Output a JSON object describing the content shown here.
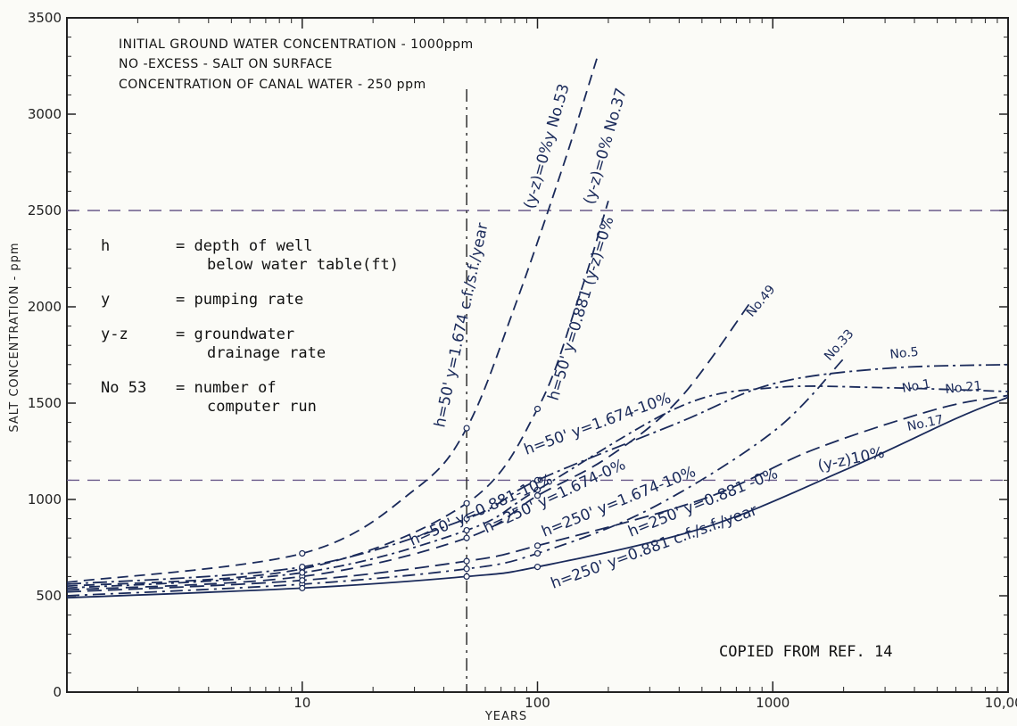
{
  "chart_data": {
    "type": "line",
    "x_scale": "log",
    "xlim": [
      1,
      10000
    ],
    "ylim": [
      0,
      3500
    ],
    "xlabel": "YEARS",
    "ylabel": "SALT CONCENTRATION - ppm",
    "x_ticks": [
      {
        "value": 1,
        "label": ""
      },
      {
        "value": 10,
        "label": "10"
      },
      {
        "value": 100,
        "label": "100"
      },
      {
        "value": 1000,
        "label": "1000"
      },
      {
        "value": 10000,
        "label": "10,000"
      }
    ],
    "y_ticks": [
      0,
      500,
      1000,
      1500,
      2000,
      2500,
      3000,
      3500
    ],
    "notes": [
      "INITIAL GROUND WATER CONCENTRATION - 1000ppm",
      "NO -EXCESS - SALT ON SURFACE",
      "CONCENTRATION OF CANAL WATER - 250 ppm"
    ],
    "legend": [
      {
        "symbol": "h",
        "desc": [
          "= depth of well",
          "below water table(ft)"
        ]
      },
      {
        "symbol": "y",
        "desc": [
          "= pumping rate"
        ]
      },
      {
        "symbol": "y-z",
        "desc": [
          "= groundwater",
          "drainage rate"
        ]
      },
      {
        "symbol": "No 53",
        "desc": [
          "= number of",
          "computer run"
        ]
      }
    ],
    "reference_lines": {
      "horizontal": [
        2500,
        1100
      ],
      "vertical": [
        50
      ]
    },
    "series": [
      {
        "name": "No. 53",
        "label": "h=50' y=1.674 c.f./s.f./year (y-z)=0%",
        "x": [
          1,
          10,
          30,
          50,
          80,
          130,
          180
        ],
        "y": [
          570,
          720,
          1050,
          1370,
          2000,
          2750,
          3300
        ]
      },
      {
        "name": "No. 37",
        "label": "h=50' y=0.881 (y-z)=0%",
        "x": [
          1,
          10,
          50,
          100,
          150,
          200
        ],
        "y": [
          550,
          640,
          980,
          1470,
          2050,
          2550
        ]
      },
      {
        "name": "No. 49",
        "label": "h=250' y=1.674-0%",
        "x": [
          1,
          10,
          50,
          100,
          200,
          400,
          800
        ],
        "y": [
          530,
          600,
          800,
          1020,
          1220,
          1520,
          2020
        ]
      },
      {
        "name": "No. 33",
        "label": "h=250' y=0.881-0%",
        "x": [
          1,
          10,
          50,
          100,
          300,
          1000,
          2000
        ],
        "y": [
          500,
          560,
          640,
          720,
          950,
          1350,
          1730
        ]
      },
      {
        "name": "No. 5",
        "label": "h=50' y=1.674-10%",
        "x": [
          1,
          10,
          50,
          100,
          400,
          1000,
          3000,
          10000
        ],
        "y": [
          560,
          650,
          900,
          1100,
          1400,
          1600,
          1680,
          1700
        ]
      },
      {
        "name": "No. 1",
        "label": "h=50' y=0.881-10%",
        "x": [
          1,
          10,
          50,
          100,
          400,
          1000,
          3000,
          10000
        ],
        "y": [
          540,
          620,
          840,
          1050,
          1480,
          1580,
          1580,
          1560
        ]
      },
      {
        "name": "No. 21",
        "label": "h=250' y=1.674-10%",
        "x": [
          1,
          10,
          50,
          100,
          500,
          1500,
          5000,
          10000
        ],
        "y": [
          520,
          580,
          680,
          760,
          1000,
          1260,
          1470,
          1540
        ]
      },
      {
        "name": "No. 17",
        "label": "h=250' y=0.881 c.f./s.f./year (y-z)10%",
        "x": [
          1,
          10,
          50,
          100,
          500,
          2000,
          6000,
          10000
        ],
        "y": [
          490,
          540,
          600,
          650,
          850,
          1150,
          1420,
          1530
        ]
      }
    ],
    "curve_labels": [
      {
        "text": "(y-z)=0%y No.53",
        "series": "No. 53"
      },
      {
        "text": "h=50' y=1.674 c.f./s.f./year",
        "series": "No. 53"
      },
      {
        "text": "(y-z)=0% No.37",
        "series": "No. 37"
      },
      {
        "text": "h=50' y=0.881 (y-z)=0%",
        "series": "No. 37"
      },
      {
        "text": "No.49",
        "series": "No. 49"
      },
      {
        "text": "No.33",
        "series": "No. 33"
      },
      {
        "text": "No.5",
        "series": "No. 5"
      },
      {
        "text": "No.1",
        "series": "No. 1"
      },
      {
        "text": "No.21",
        "series": "No. 21"
      },
      {
        "text": "No.17",
        "series": "No. 17"
      },
      {
        "text": "h=50' y=1.674-10%",
        "series": "No. 5"
      },
      {
        "text": "h=50' y=0.881-10%",
        "series": "No. 1"
      },
      {
        "text": "h=250' y=1.674-0%",
        "series": "No. 49"
      },
      {
        "text": "h=250' y=1.674-10%",
        "series": "No. 21"
      },
      {
        "text": "h=250' y=0.881 -0%",
        "series": "No. 33"
      },
      {
        "text": "(y-z)10%",
        "series": "No. 17"
      },
      {
        "text": "h=250' y=0.881 c.f./s.f./year",
        "series": "No. 17"
      }
    ],
    "annotation": "COPIED FROM REF. 14",
    "grid": false,
    "colors": {
      "ink": "#1a2a5a",
      "axes": "#222222",
      "reference": "#6a5a8a"
    }
  }
}
